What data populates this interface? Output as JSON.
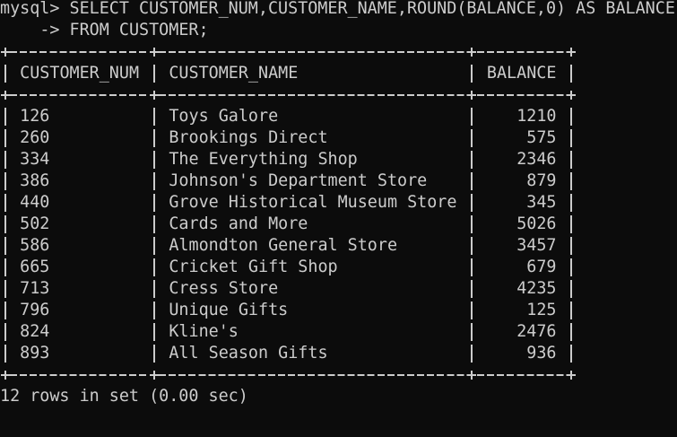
{
  "prompt": {
    "line1": "mysql> SELECT CUSTOMER_NUM,CUSTOMER_NAME,ROUND(BALANCE,0) AS BALANCE",
    "line2": "-> FROM CUSTOMER;"
  },
  "table": {
    "headers": [
      "CUSTOMER_NUM",
      "CUSTOMER_NAME",
      "BALANCE"
    ],
    "rows": [
      [
        126,
        "Toys Galore",
        1210
      ],
      [
        260,
        "Brookings Direct",
        575
      ],
      [
        334,
        "The Everything Shop",
        2346
      ],
      [
        386,
        "Johnson's Department Store",
        879
      ],
      [
        440,
        "Grove Historical Museum Store",
        345
      ],
      [
        502,
        "Cards and More",
        5026
      ],
      [
        586,
        "Almondton General Store",
        3457
      ],
      [
        665,
        "Cricket Gift Shop",
        679
      ],
      [
        713,
        "Cress Store",
        4235
      ],
      [
        796,
        "Unique Gifts",
        125
      ],
      [
        824,
        "Kline's",
        2476
      ],
      [
        893,
        "All Season Gifts",
        936
      ]
    ]
  },
  "footer": "12 rows in set (0.00 sec)"
}
